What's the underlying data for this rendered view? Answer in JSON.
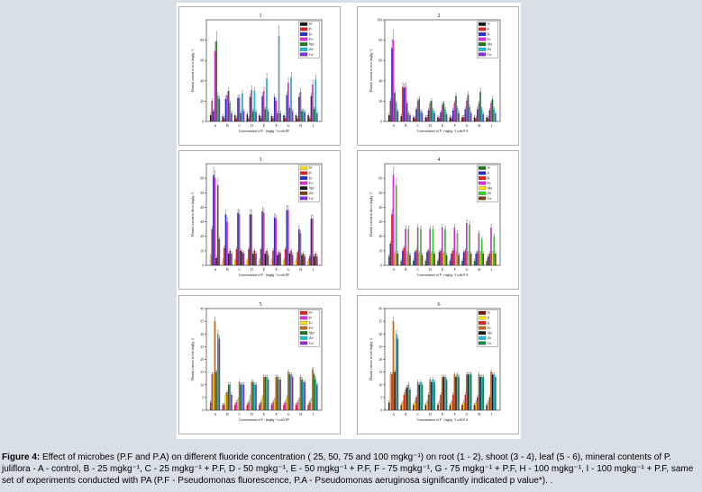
{
  "colors": {
    "N": "#1a1a1a",
    "P": "#e8211f",
    "K": "#2a2ad8",
    "Fe": "#e02fd8",
    "Mn": "#1f7a1f",
    "Zn": "#19c2d8",
    "Cu": "#8a2be2",
    "N_alt": "#ffe000",
    "Mn_alt": "#7d3f12",
    "Fe6": "#c46a1e",
    "Cu6": "#118a53"
  },
  "chart_data": [
    {
      "id": "1",
      "type": "bar",
      "categories": [
        "A",
        "B",
        "C",
        "D",
        "E",
        "F",
        "G",
        "H",
        "I"
      ],
      "xlabel": "Concentration of F⁻ (mgkg⁻¹) with P.F",
      "ylabel": "Mineral content in root (mgkg⁻¹)",
      "ylim": [
        0,
        100
      ],
      "yticks": [
        0,
        20,
        40,
        60,
        80
      ],
      "legend": [
        "N¹",
        "P¹",
        "K¹",
        "Fe¹",
        "Mn¹",
        "Zn¹",
        "Cu¹"
      ],
      "series_colors": [
        "#1a1a1a",
        "#e8211f",
        "#2a2ad8",
        "#e02fd8",
        "#1f7a1f",
        "#19c2d8",
        "#8a2be2"
      ],
      "series": [
        {
          "name": "N¹",
          "values": [
            6,
            5,
            6,
            7,
            6,
            5,
            6,
            6,
            6
          ]
        },
        {
          "name": "P¹",
          "values": [
            20,
            3,
            3,
            3,
            3,
            3,
            3,
            3,
            3
          ]
        },
        {
          "name": "K¹",
          "values": [
            10,
            22,
            23,
            24,
            25,
            24,
            26,
            24,
            25
          ]
        },
        {
          "name": "Fe¹",
          "values": [
            69,
            26,
            23,
            31,
            30,
            20,
            38,
            29,
            36
          ]
        },
        {
          "name": "Mn¹",
          "values": [
            79,
            30,
            8,
            10,
            12,
            8,
            13,
            10,
            12
          ]
        },
        {
          "name": "Zn¹",
          "values": [
            25,
            18,
            27,
            30,
            42,
            84,
            43,
            10,
            41
          ]
        },
        {
          "name": "Cu¹",
          "values": [
            22,
            8,
            10,
            9,
            10,
            8,
            10,
            9,
            8
          ]
        }
      ]
    },
    {
      "id": "2",
      "type": "bar",
      "categories": [
        "A",
        "B",
        "C",
        "D",
        "E",
        "F",
        "G",
        "H",
        "I"
      ],
      "xlabel": "Concentration of F⁻ (mgkg⁻¹) with P.A",
      "ylabel": "Mineral content in root (mgkg⁻¹)",
      "ylim": [
        0,
        100
      ],
      "yticks": [
        0,
        20,
        40,
        60,
        80,
        100
      ],
      "legend": [
        "N",
        "P",
        "K",
        "Fe",
        "Mn",
        "Zn",
        "Cu"
      ],
      "series_colors": [
        "#1a1a1a",
        "#e8211f",
        "#2a2ad8",
        "#e02fd8",
        "#1f7a1f",
        "#19c2d8",
        "#8a2be2"
      ],
      "series": [
        {
          "name": "N",
          "values": [
            6,
            5,
            4,
            4,
            4,
            4,
            4,
            4,
            4
          ]
        },
        {
          "name": "P",
          "values": [
            20,
            34,
            3,
            4,
            3,
            3,
            4,
            3,
            3
          ]
        },
        {
          "name": "K",
          "values": [
            72,
            33,
            12,
            11,
            9,
            11,
            12,
            12,
            11
          ]
        },
        {
          "name": "Fe",
          "values": [
            80,
            34,
            20,
            18,
            16,
            18,
            20,
            18,
            18
          ]
        },
        {
          "name": "Mn",
          "values": [
            28,
            18,
            22,
            20,
            18,
            25,
            26,
            29,
            22
          ]
        },
        {
          "name": "Zn",
          "values": [
            18,
            8,
            10,
            11,
            12,
            13,
            14,
            12,
            12
          ]
        },
        {
          "name": "Cu",
          "values": [
            10,
            6,
            8,
            8,
            7,
            8,
            8,
            7,
            8
          ]
        }
      ]
    },
    {
      "id": "3",
      "type": "bar",
      "categories": [
        "A",
        "B",
        "C",
        "D",
        "E",
        "F",
        "G",
        "H",
        "I"
      ],
      "xlabel": "Concentration of F⁻ (mgkg⁻¹) with P.F",
      "ylabel": "Mineral content in shoot (mgkg⁻¹)",
      "ylim": [
        0,
        70
      ],
      "yticks": [
        0,
        10,
        20,
        30,
        40,
        50,
        60
      ],
      "legend": [
        "N¹",
        "P¹",
        "K¹",
        "Fe¹",
        "Mn¹",
        "Zn¹",
        "Cu¹"
      ],
      "series_colors": [
        "#ffe000",
        "#e8211f",
        "#2a2ad8",
        "#e02fd8",
        "#1a1a1a",
        "#7d3f12",
        "#8a2be2"
      ],
      "series": [
        {
          "name": "N¹",
          "values": [
            6,
            3,
            3,
            3,
            3,
            3,
            3,
            3,
            3
          ]
        },
        {
          "name": "P¹",
          "values": [
            25,
            12,
            11,
            11,
            11,
            10,
            11,
            9,
            6
          ]
        },
        {
          "name": "K¹",
          "values": [
            62,
            35,
            36,
            35,
            37,
            33,
            38,
            25,
            32
          ]
        },
        {
          "name": "Fe¹",
          "values": [
            60,
            30,
            35,
            35,
            36,
            32,
            38,
            22,
            32
          ]
        },
        {
          "name": "Mn¹",
          "values": [
            5,
            8,
            10,
            8,
            8,
            7,
            8,
            7,
            6
          ]
        },
        {
          "name": "Zn¹",
          "values": [
            55,
            10,
            9,
            10,
            10,
            9,
            10,
            8,
            8
          ]
        },
        {
          "name": "Cu¹",
          "values": [
            18,
            8,
            8,
            8,
            7,
            8,
            7,
            6,
            6
          ]
        }
      ]
    },
    {
      "id": "4",
      "type": "bar",
      "categories": [
        "A",
        "B",
        "C",
        "D",
        "E",
        "F",
        "G",
        "H",
        "I"
      ],
      "xlabel": "Concentration of F⁻ (mgkg⁻¹) with P.A",
      "ylabel": "Mineral content in shoot (mgkg⁻¹)",
      "ylim": [
        0,
        70
      ],
      "yticks": [
        0,
        10,
        20,
        30,
        40,
        50,
        60
      ],
      "legend": [
        "N",
        "P",
        "K",
        "Fe",
        "Mn",
        "Zn",
        "Cu"
      ],
      "series_colors": [
        "#1f7a1f",
        "#2a2ad8",
        "#e8211f",
        "#e02fd8",
        "#ffe000",
        "#2fd82f",
        "#7d3f12"
      ],
      "series": [
        {
          "name": "N",
          "values": [
            6,
            3,
            3,
            3,
            3,
            3,
            3,
            3,
            3
          ]
        },
        {
          "name": "P",
          "values": [
            15,
            10,
            9,
            9,
            9,
            8,
            9,
            8,
            6
          ]
        },
        {
          "name": "K",
          "values": [
            35,
            12,
            10,
            10,
            10,
            10,
            10,
            9,
            8
          ]
        },
        {
          "name": "Fe",
          "values": [
            62,
            25,
            26,
            25,
            26,
            26,
            29,
            22,
            26
          ]
        },
        {
          "name": "Mn",
          "values": [
            8,
            8,
            8,
            8,
            8,
            8,
            8,
            8,
            8
          ]
        },
        {
          "name": "Zn",
          "values": [
            55,
            25,
            25,
            25,
            25,
            22,
            28,
            18,
            20
          ]
        },
        {
          "name": "Cu",
          "values": [
            8,
            7,
            7,
            8,
            7,
            7,
            8,
            8,
            8
          ]
        }
      ]
    },
    {
      "id": "5",
      "type": "bar",
      "categories": [
        "A",
        "B",
        "C",
        "D",
        "E",
        "F",
        "G",
        "H",
        "I"
      ],
      "xlabel": "Concentration of F⁻ (mgkg⁻¹) with P.F",
      "ylabel": "Mineral content in leaf (mgkg⁻¹)",
      "ylim": [
        0,
        40
      ],
      "yticks": [
        0,
        5,
        10,
        15,
        20,
        25,
        30,
        35,
        40
      ],
      "legend": [
        "N¹",
        "P¹",
        "K¹",
        "Fe¹",
        "Mn¹",
        "Zn¹",
        "Cu¹"
      ],
      "series_colors": [
        "#e8211f",
        "#e02fd8",
        "#ffe000",
        "#c46a1e",
        "#1f7a1f",
        "#19c2d8",
        "#8a2be2"
      ],
      "series": [
        {
          "name": "N¹",
          "values": [
            3,
            2,
            2,
            2,
            2,
            2,
            2,
            2,
            2
          ]
        },
        {
          "name": "P¹",
          "values": [
            14,
            2,
            3,
            3,
            3,
            3,
            3,
            3,
            3
          ]
        },
        {
          "name": "K¹",
          "values": [
            14,
            6,
            4,
            5,
            5,
            4,
            5,
            4,
            4
          ]
        },
        {
          "name": "Fe¹",
          "values": [
            35,
            7,
            11,
            11,
            13,
            13,
            15,
            13,
            16
          ]
        },
        {
          "name": "Mn¹",
          "values": [
            15,
            10,
            10,
            11,
            13,
            13,
            14,
            12,
            14
          ]
        },
        {
          "name": "Zn¹",
          "values": [
            30,
            10,
            10,
            10,
            13,
            12,
            14,
            11,
            12
          ]
        },
        {
          "name": "Cu¹",
          "values": [
            28,
            6,
            10,
            10,
            12,
            12,
            13,
            11,
            10
          ]
        }
      ]
    },
    {
      "id": "6",
      "type": "bar",
      "categories": [
        "A",
        "B",
        "C",
        "D",
        "E",
        "F",
        "G",
        "H",
        "I"
      ],
      "xlabel": "Concentration of F⁻ (mgkg⁻¹) with P.A",
      "ylabel": "Mineral content in leaf (mgkg⁻¹)",
      "ylim": [
        0,
        40
      ],
      "yticks": [
        0,
        5,
        10,
        15,
        20,
        25,
        30,
        35,
        40
      ],
      "legend": [
        "N",
        "P",
        "K",
        "Fe",
        "Mn",
        "Zn",
        "Cu"
      ],
      "series_colors": [
        "#7d0f0f",
        "#ffe000",
        "#e8211f",
        "#c46a1e",
        "#1a1a1a",
        "#19c2d8",
        "#118a53"
      ],
      "series": [
        {
          "name": "N",
          "values": [
            3,
            2,
            2,
            2,
            2,
            2,
            2,
            2,
            2
          ]
        },
        {
          "name": "P",
          "values": [
            14,
            3,
            3,
            3,
            3,
            3,
            3,
            3,
            3
          ]
        },
        {
          "name": "K",
          "values": [
            14,
            6,
            5,
            6,
            6,
            6,
            6,
            5,
            5
          ]
        },
        {
          "name": "Fe",
          "values": [
            35,
            8,
            11,
            12,
            13,
            14,
            14,
            14,
            15
          ]
        },
        {
          "name": "Mn",
          "values": [
            15,
            9,
            10,
            11,
            13,
            13,
            14,
            13,
            14
          ]
        },
        {
          "name": "Zn",
          "values": [
            30,
            10,
            11,
            12,
            13,
            14,
            14,
            13,
            14
          ]
        },
        {
          "name": "Cu",
          "values": [
            28,
            8,
            10,
            11,
            12,
            13,
            14,
            13,
            13
          ]
        }
      ]
    }
  ],
  "caption": {
    "figure_label": "Figure 4:",
    "text": " Effect of microbes (P.F and P.A) on different fluoride concentration ( 25, 50, 75 and 100 mgkg⁻¹) on root (1 - 2), shoot (3 - 4), leaf (5 - 6),  mineral contents of P. juliflora - A - control, B - 25 mgkg⁻¹, C - 25 mgkg⁻¹ + P.F, D - 50 mgkg⁻¹, E - 50 mgkg⁻¹ + P.F, F - 75  mgkg⁻¹, G - 75 mgkg⁻¹ + P.F, H - 100 mgkg⁻¹, I - 100 mgkg⁻¹ + P.F, same set of experiments conducted with  PA (P.F - Pseudomonas fluorescence, P.A - Pseudomonas aeruginosa significantly indicated p value*). ."
  }
}
